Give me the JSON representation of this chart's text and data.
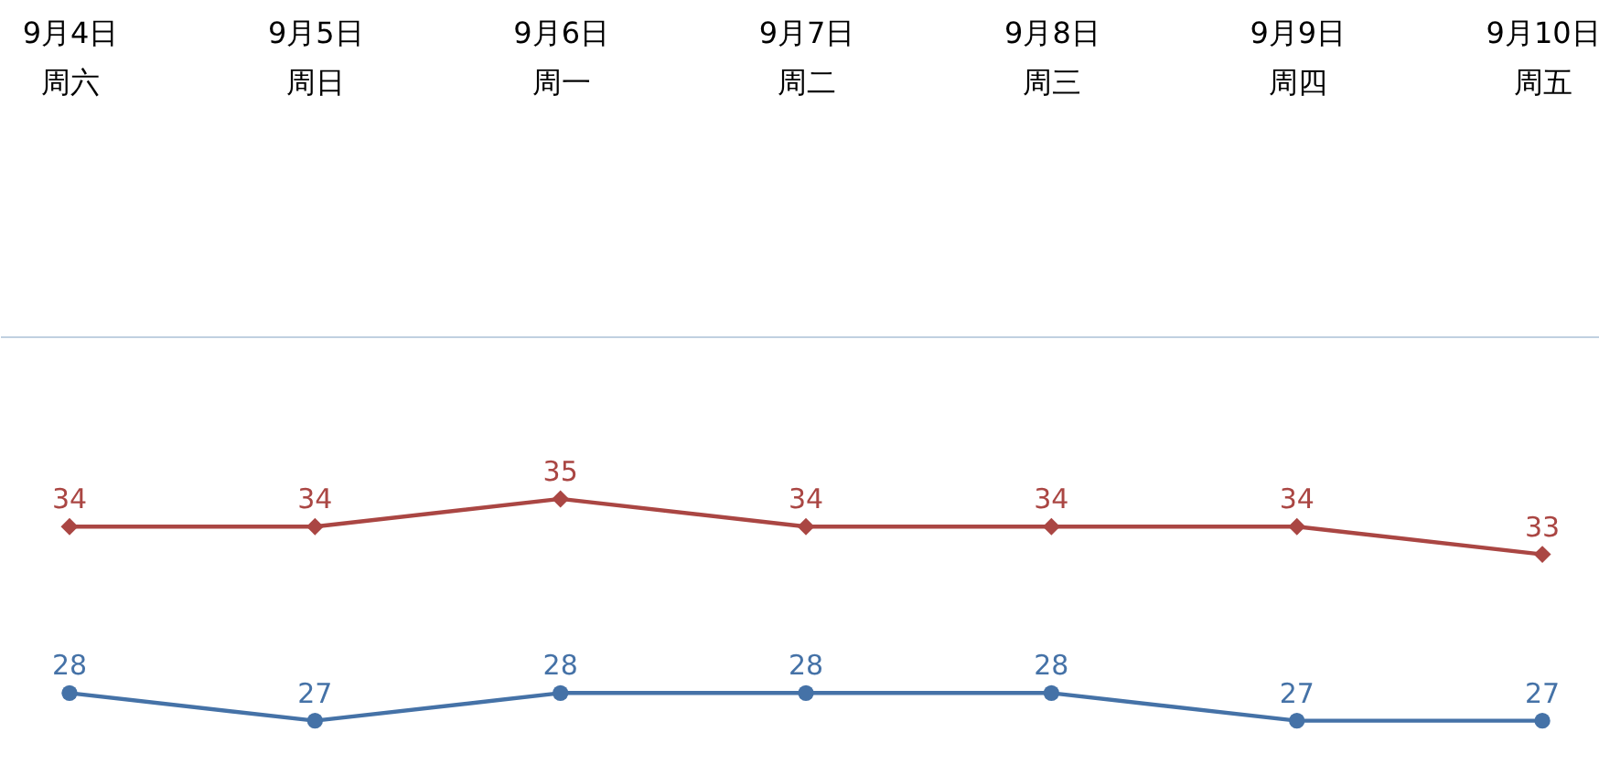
{
  "chart_data": {
    "type": "line",
    "categories": [
      "9月4日周六",
      "9月5日周日",
      "9月6日周一",
      "9月7日周二",
      "9月8日周三",
      "9月9日周四",
      "9月10日周五"
    ],
    "series": [
      {
        "color": "#aa4643",
        "marker": "diamond",
        "values": [
          34,
          34,
          35,
          34,
          34,
          34,
          33
        ]
      },
      {
        "color": "#4572a7",
        "marker": "circle",
        "values": [
          28,
          27,
          28,
          28,
          28,
          27,
          27
        ]
      }
    ],
    "data_labels": true,
    "tick_labels": "x"
  }
}
